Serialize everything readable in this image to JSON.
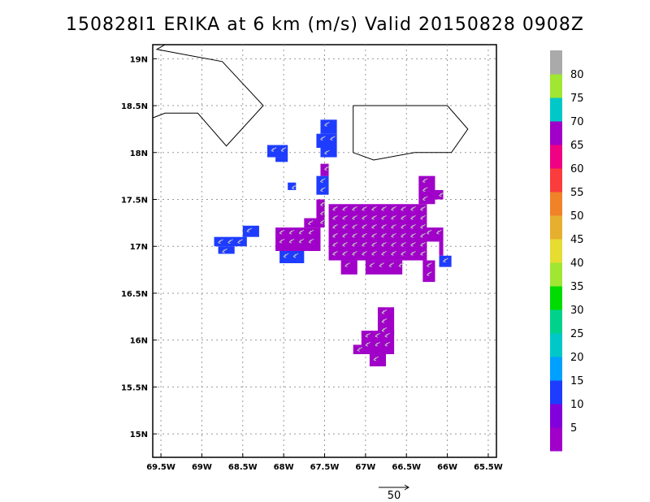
{
  "title": "150828I1 ERIKA at 6 km (m/s) Valid 20150828 0908Z",
  "map": {
    "lon_range": [
      -69.6,
      -65.4
    ],
    "lat_range": [
      14.75,
      19.15
    ],
    "lon_ticks": [
      {
        "value": -69.5,
        "label": "69.5W"
      },
      {
        "value": -69,
        "label": "69W"
      },
      {
        "value": -68.5,
        "label": "68.5W"
      },
      {
        "value": -68,
        "label": "68W"
      },
      {
        "value": -67.5,
        "label": "67.5W"
      },
      {
        "value": -67,
        "label": "67W"
      },
      {
        "value": -66.5,
        "label": "66.5W"
      },
      {
        "value": -66,
        "label": "66W"
      },
      {
        "value": -65.5,
        "label": "65.5W"
      }
    ],
    "lat_ticks": [
      {
        "value": 15,
        "label": "15N"
      },
      {
        "value": 15.5,
        "label": "15.5N"
      },
      {
        "value": 16,
        "label": "16N"
      },
      {
        "value": 16.5,
        "label": "16.5N"
      },
      {
        "value": 17,
        "label": "17N"
      },
      {
        "value": 17.5,
        "label": "17.5N"
      },
      {
        "value": 18,
        "label": "18N"
      },
      {
        "value": 18.5,
        "label": "18.5N"
      },
      {
        "value": 19,
        "label": "19N"
      }
    ],
    "grid": true,
    "coastlines": [
      [
        [
          -69.6,
          18.37
        ],
        [
          -69.45,
          18.42
        ],
        [
          -69.05,
          18.42
        ],
        [
          -68.7,
          18.07
        ],
        [
          -68.25,
          18.5
        ],
        [
          -68.75,
          18.97
        ],
        [
          -69.55,
          19.1
        ],
        [
          -69.45,
          19.15
        ]
      ],
      [
        [
          -67.15,
          18.5
        ],
        [
          -66.0,
          18.5
        ],
        [
          -65.75,
          18.25
        ],
        [
          -65.95,
          18.0
        ],
        [
          -66.4,
          18.0
        ],
        [
          -66.9,
          17.92
        ],
        [
          -67.15,
          18.0
        ],
        [
          -67.15,
          18.5
        ]
      ]
    ],
    "colors": {
      "wind_5": "#a000c8",
      "wind_10": "#1e3cff"
    },
    "echo_regions": [
      {
        "color_class": "wind_10",
        "cells": [
          [
            -67.55,
            18.2,
            -67.35,
            18.35
          ],
          [
            -67.6,
            18.05,
            -67.35,
            18.2
          ],
          [
            -67.55,
            17.95,
            -67.35,
            18.05
          ]
        ]
      },
      {
        "color_class": "wind_10",
        "cells": [
          [
            -68.2,
            17.95,
            -67.95,
            18.08
          ],
          [
            -68.1,
            17.9,
            -67.95,
            17.95
          ]
        ]
      },
      {
        "color_class": "wind_10",
        "cells": [
          [
            -67.95,
            17.6,
            -67.85,
            17.68
          ]
        ]
      },
      {
        "color_class": "wind_10",
        "cells": [
          [
            -67.6,
            17.55,
            -67.45,
            17.75
          ]
        ]
      },
      {
        "color_class": "wind_5",
        "cells": [
          [
            -67.55,
            17.75,
            -67.45,
            17.88
          ]
        ]
      },
      {
        "color_class": "wind_10",
        "cells": [
          [
            -68.85,
            17.0,
            -68.45,
            17.1
          ],
          [
            -68.5,
            17.1,
            -68.3,
            17.22
          ],
          [
            -68.8,
            16.92,
            -68.6,
            17.0
          ]
        ]
      },
      {
        "color_class": "wind_5",
        "cells": [
          [
            -68.1,
            16.95,
            -67.55,
            17.2
          ],
          [
            -67.6,
            17.2,
            -67.5,
            17.5
          ],
          [
            -67.75,
            17.2,
            -67.55,
            17.3
          ]
        ]
      },
      {
        "color_class": "wind_10",
        "cells": [
          [
            -68.05,
            16.82,
            -67.75,
            16.95
          ]
        ]
      },
      {
        "color_class": "wind_5",
        "cells": [
          [
            -67.45,
            16.85,
            -66.25,
            17.45
          ],
          [
            -66.35,
            17.45,
            -66.15,
            17.75
          ],
          [
            -66.15,
            17.5,
            -66.05,
            17.6
          ],
          [
            -66.3,
            17.05,
            -66.05,
            17.2
          ],
          [
            -66.1,
            16.9,
            -66.05,
            17.05
          ],
          [
            -66.3,
            16.62,
            -66.15,
            16.85
          ],
          [
            -67.0,
            16.7,
            -66.55,
            16.85
          ],
          [
            -67.3,
            16.7,
            -67.1,
            16.85
          ]
        ]
      },
      {
        "color_class": "wind_10",
        "cells": [
          [
            -66.1,
            16.78,
            -65.95,
            16.9
          ]
        ]
      },
      {
        "color_class": "wind_5",
        "cells": [
          [
            -66.85,
            16.05,
            -66.65,
            16.35
          ],
          [
            -67.05,
            15.85,
            -66.65,
            16.1
          ],
          [
            -67.15,
            15.85,
            -67.0,
            15.95
          ],
          [
            -66.95,
            15.72,
            -66.75,
            15.85
          ]
        ]
      }
    ]
  },
  "colorbar": {
    "colors": [
      "#a000c8",
      "#8200dc",
      "#1e3cff",
      "#00a0ff",
      "#00c8c8",
      "#00d28c",
      "#00dc00",
      "#a0e632",
      "#e6dc32",
      "#e6af2d",
      "#f08228",
      "#fa3c3c",
      "#f00082",
      "#a000c8",
      "#00c8c8",
      "#a0e632",
      "#aaaaaa"
    ],
    "labels": [
      "5",
      "10",
      "15",
      "20",
      "25",
      "30",
      "35",
      "40",
      "45",
      "50",
      "55",
      "60",
      "65",
      "70",
      "75",
      "80"
    ]
  },
  "vector_key": {
    "label": "50"
  }
}
